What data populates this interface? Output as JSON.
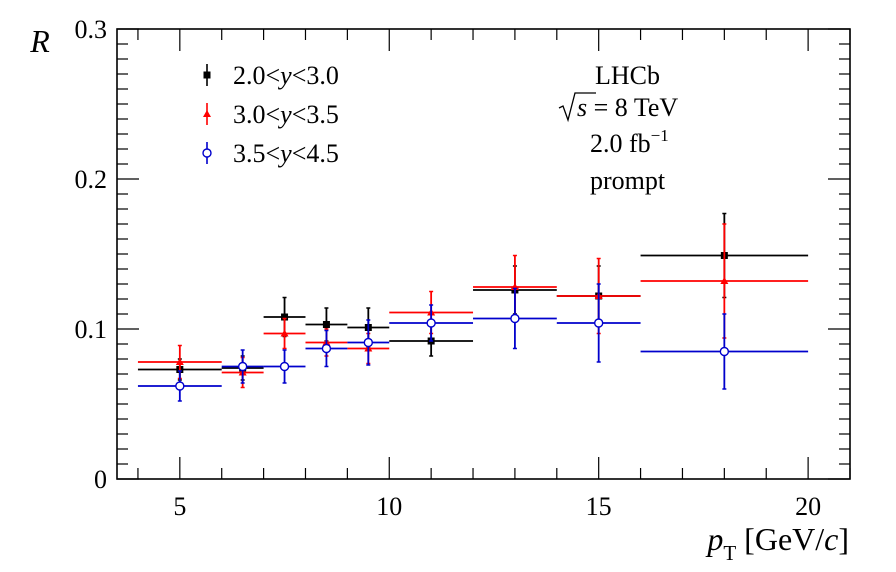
{
  "chart_data": {
    "type": "scatter",
    "title": "",
    "xlabel": "p_T [GeV/c]",
    "xlabel_parts": {
      "var": "p",
      "sub": "T",
      "unit": "[GeV/",
      "unit_var": "c",
      "unit_close": "]"
    },
    "ylabel": "R",
    "xlim": [
      3.5,
      21
    ],
    "ylim": [
      0,
      0.3
    ],
    "xticks": [
      5,
      10,
      15,
      20
    ],
    "yticks": [
      0,
      0.1,
      0.2,
      0.3
    ],
    "ytick_labels": [
      "0",
      "0.1",
      "0.2",
      "0.3"
    ],
    "grid": false,
    "legend_position": "top-left",
    "series": [
      {
        "name": "2.0<y<3.0",
        "name_parts": {
          "lo": "2.0",
          "var": "y",
          "hi": "3.0"
        },
        "color": "#000000",
        "marker": "filled-square",
        "points": [
          {
            "x": 5.0,
            "xlo": 4,
            "xhi": 6,
            "y": 0.073,
            "yerr": 0.007
          },
          {
            "x": 6.5,
            "xlo": 6,
            "xhi": 7,
            "y": 0.074,
            "yerr": 0.008
          },
          {
            "x": 7.5,
            "xlo": 7,
            "xhi": 8,
            "y": 0.108,
            "yerr": 0.013
          },
          {
            "x": 8.5,
            "xlo": 8,
            "xhi": 9,
            "y": 0.103,
            "yerr": 0.011
          },
          {
            "x": 9.5,
            "xlo": 9,
            "xhi": 10,
            "y": 0.101,
            "yerr": 0.013
          },
          {
            "x": 11.0,
            "xlo": 10,
            "xhi": 12,
            "y": 0.092,
            "yerr": 0.01
          },
          {
            "x": 13.0,
            "xlo": 12,
            "xhi": 14,
            "y": 0.126,
            "yerr": 0.016
          },
          {
            "x": 15.0,
            "xlo": 14,
            "xhi": 16,
            "y": 0.122,
            "yerr": 0.02
          },
          {
            "x": 18.0,
            "xlo": 16,
            "xhi": 20,
            "y": 0.149,
            "yerr": 0.028
          }
        ]
      },
      {
        "name": "3.0<y<3.5",
        "name_parts": {
          "lo": "3.0",
          "var": "y",
          "hi": "3.5"
        },
        "color": "#ff0000",
        "marker": "filled-triangle",
        "points": [
          {
            "x": 5.0,
            "xlo": 4,
            "xhi": 6,
            "y": 0.078,
            "yerr": 0.011
          },
          {
            "x": 6.5,
            "xlo": 6,
            "xhi": 7,
            "y": 0.071,
            "yerr": 0.01
          },
          {
            "x": 7.5,
            "xlo": 7,
            "xhi": 8,
            "y": 0.097,
            "yerr": 0.01
          },
          {
            "x": 8.5,
            "xlo": 8,
            "xhi": 9,
            "y": 0.091,
            "yerr": 0.009
          },
          {
            "x": 9.5,
            "xlo": 9,
            "xhi": 10,
            "y": 0.087,
            "yerr": 0.01
          },
          {
            "x": 11.0,
            "xlo": 10,
            "xhi": 12,
            "y": 0.111,
            "yerr": 0.014
          },
          {
            "x": 13.0,
            "xlo": 12,
            "xhi": 14,
            "y": 0.128,
            "yerr": 0.021
          },
          {
            "x": 15.0,
            "xlo": 14,
            "xhi": 16,
            "y": 0.122,
            "yerr": 0.025
          },
          {
            "x": 18.0,
            "xlo": 16,
            "xhi": 20,
            "y": 0.132,
            "yerr": 0.038
          }
        ]
      },
      {
        "name": "3.5<y<4.5",
        "name_parts": {
          "lo": "3.5",
          "var": "y",
          "hi": "4.5"
        },
        "color": "#0000cc",
        "marker": "open-circle",
        "points": [
          {
            "x": 5.0,
            "xlo": 4,
            "xhi": 6,
            "y": 0.062,
            "yerr": 0.01
          },
          {
            "x": 6.5,
            "xlo": 6,
            "xhi": 7,
            "y": 0.075,
            "yerr": 0.011
          },
          {
            "x": 7.5,
            "xlo": 7,
            "xhi": 8,
            "y": 0.075,
            "yerr": 0.011
          },
          {
            "x": 8.5,
            "xlo": 8,
            "xhi": 9,
            "y": 0.087,
            "yerr": 0.012
          },
          {
            "x": 9.5,
            "xlo": 9,
            "xhi": 10,
            "y": 0.091,
            "yerr": 0.015
          },
          {
            "x": 11.0,
            "xlo": 10,
            "xhi": 12,
            "y": 0.104,
            "yerr": 0.012
          },
          {
            "x": 13.0,
            "xlo": 12,
            "xhi": 14,
            "y": 0.107,
            "yerr": 0.02
          },
          {
            "x": 15.0,
            "xlo": 14,
            "xhi": 16,
            "y": 0.104,
            "yerr": 0.026
          },
          {
            "x": 18.0,
            "xlo": 16,
            "xhi": 20,
            "y": 0.085,
            "yerr": 0.025
          }
        ]
      }
    ],
    "annotations": {
      "experiment": "LHCb",
      "energy_var": "s",
      "energy_value": " = 8 TeV",
      "lumi_value": "2.0 fb",
      "lumi_exp": "−1",
      "selection": "prompt"
    }
  }
}
